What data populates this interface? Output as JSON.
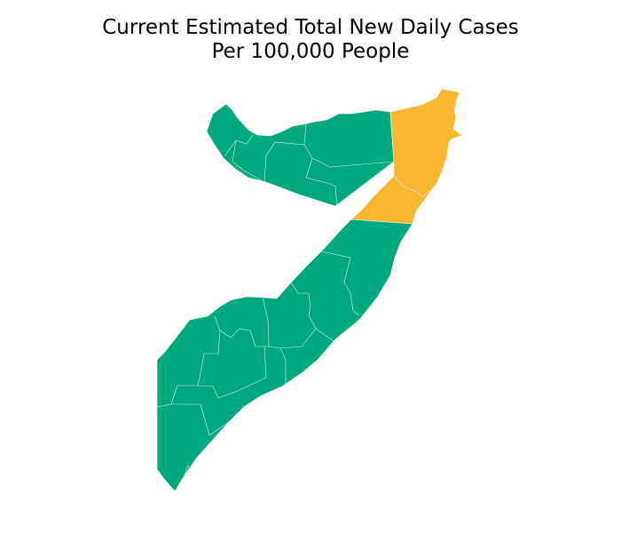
{
  "title": {
    "line1": "Current Estimated Total New Daily Cases",
    "line2": "Per 100,000 People"
  },
  "colors": {
    "low": "#00a87e",
    "elevated": "#f9b731",
    "background": "#ffffff",
    "border": "#ffffff"
  },
  "regions": [
    {
      "key": "awdal",
      "category": "low"
    },
    {
      "key": "woqooyi-galbeed",
      "category": "low"
    },
    {
      "key": "togdheer",
      "category": "low"
    },
    {
      "key": "sanaag",
      "category": "low"
    },
    {
      "key": "sool",
      "category": "low"
    },
    {
      "key": "bari",
      "category": "elevated"
    },
    {
      "key": "nugaal",
      "category": "elevated"
    },
    {
      "key": "mudug",
      "category": "low"
    },
    {
      "key": "galguduud",
      "category": "low"
    },
    {
      "key": "hiiraan",
      "category": "low"
    },
    {
      "key": "middle-shabelle",
      "category": "low"
    },
    {
      "key": "bakool",
      "category": "low"
    },
    {
      "key": "bay",
      "category": "low"
    },
    {
      "key": "banadir",
      "category": "low"
    },
    {
      "key": "lower-shabelle",
      "category": "low"
    },
    {
      "key": "gedo",
      "category": "low"
    },
    {
      "key": "middle-juba",
      "category": "low"
    },
    {
      "key": "lower-juba",
      "category": "low"
    }
  ]
}
